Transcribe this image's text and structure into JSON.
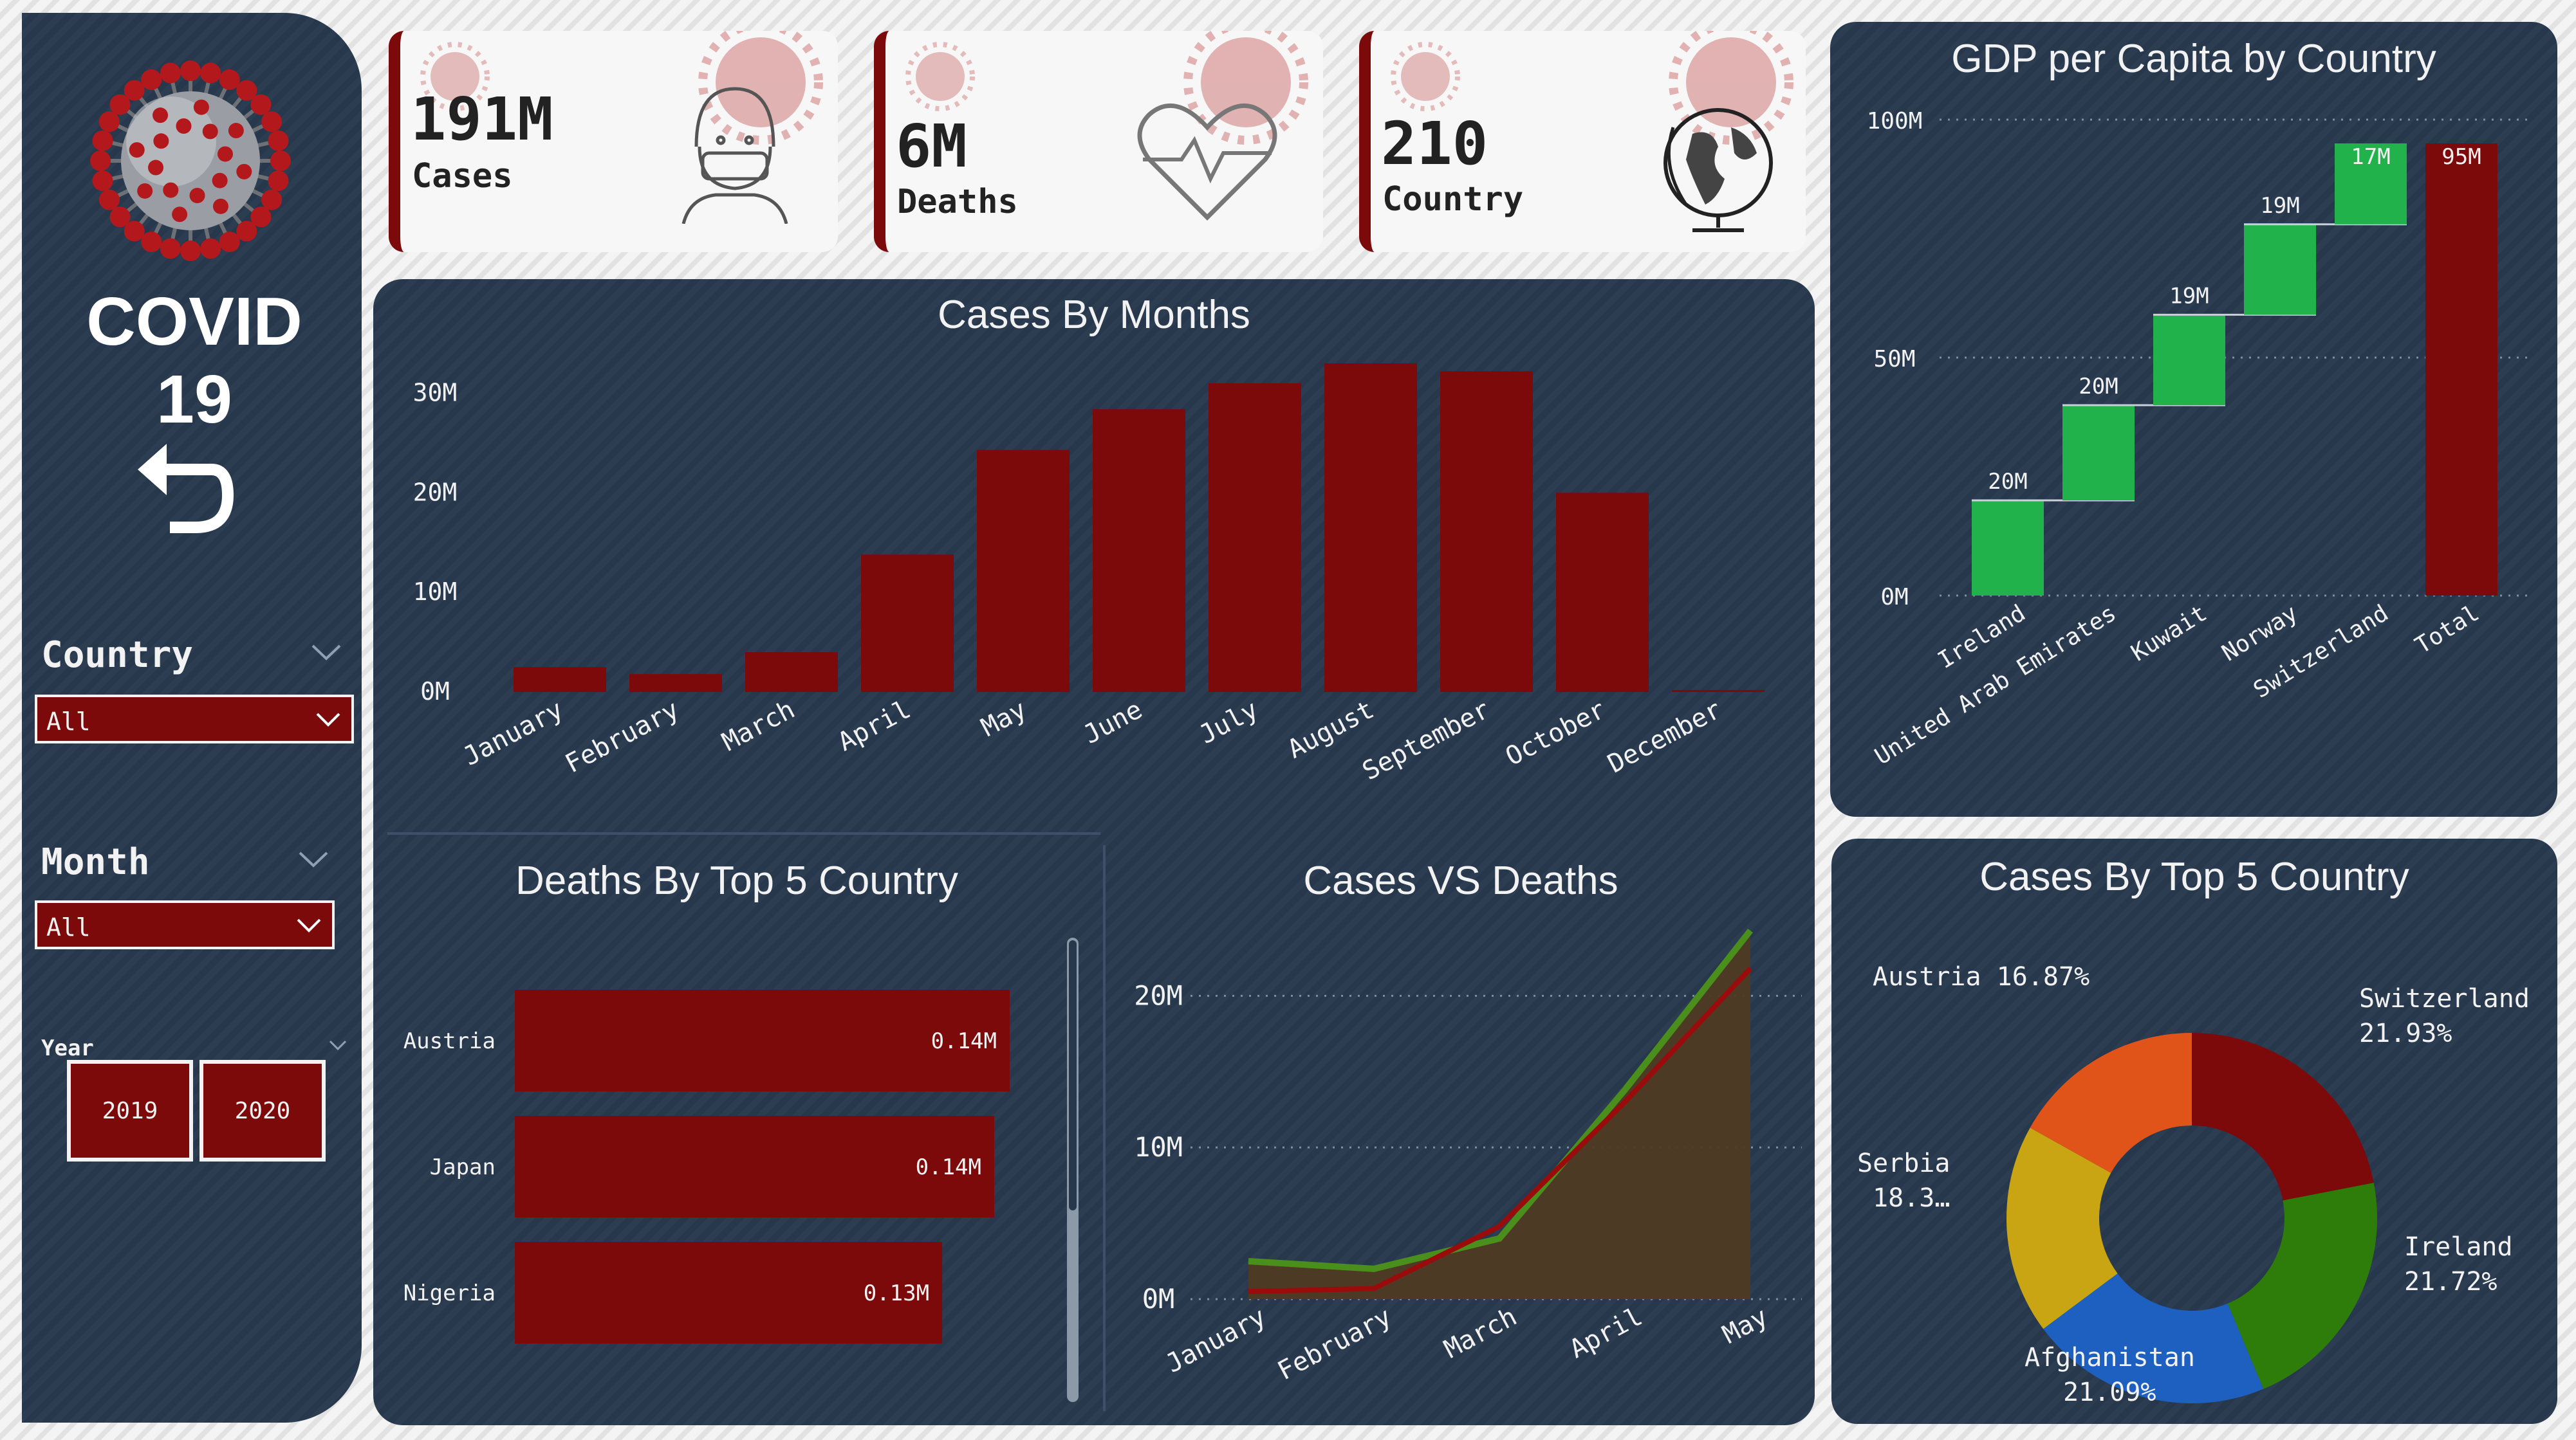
{
  "app_title": "COVID 19",
  "cards": [
    {
      "value": "191M",
      "label": "Cases",
      "icon": "masked-face-icon"
    },
    {
      "value": "6M",
      "label": "Deaths",
      "icon": "heartbeat-icon"
    },
    {
      "value": "210",
      "label": "Country",
      "icon": "globe-icon"
    }
  ],
  "slicers": {
    "country": {
      "label": "Country",
      "selected": "All"
    },
    "month": {
      "label": "Month",
      "selected": "All"
    },
    "year": {
      "label": "Year",
      "options": [
        "2019",
        "2020"
      ]
    }
  },
  "colors": {
    "panel": "#27384d",
    "bar": "#7c0a0a",
    "gain": "#22b24c",
    "accent_line": "#4a8f1c"
  },
  "chart_data": [
    {
      "id": "cases_by_months",
      "type": "bar",
      "title": "Cases By Months",
      "categories": [
        "January",
        "February",
        "March",
        "April",
        "May",
        "June",
        "July",
        "August",
        "September",
        "October",
        "December"
      ],
      "values": [
        2.5,
        1.8,
        4.0,
        13.8,
        24.3,
        28.4,
        31.0,
        33.0,
        32.2,
        20.0,
        0.2
      ],
      "y_ticks": [
        "0M",
        "10M",
        "20M",
        "30M"
      ],
      "ylim": [
        0,
        35
      ],
      "unit": "M"
    },
    {
      "id": "deaths_by_top5_country",
      "type": "bar",
      "orientation": "horizontal",
      "title": "Deaths By Top 5 Country",
      "categories": [
        "Austria",
        "Japan",
        "Nigeria"
      ],
      "values": [
        0.14,
        0.14,
        0.13
      ],
      "data_labels": [
        "0.14M",
        "0.14M",
        "0.13M"
      ]
    },
    {
      "id": "cases_vs_deaths",
      "type": "area",
      "title": "Cases VS Deaths",
      "categories": [
        "January",
        "February",
        "March",
        "April",
        "May"
      ],
      "y_ticks": [
        "0M",
        "10M",
        "20M"
      ],
      "ylim": [
        0,
        24
      ],
      "series": [
        {
          "values": [
            2.5,
            2.0,
            4.0,
            13.8,
            24.3
          ]
        },
        {
          "values": [
            0.5,
            0.7,
            4.8,
            13.0,
            21.8
          ]
        }
      ]
    },
    {
      "id": "gdp_per_capita_by_country",
      "type": "bar",
      "subtype": "waterfall",
      "title": "GDP per Capita by Country",
      "categories": [
        "Ireland",
        "United Arab Emirates",
        "Kuwait",
        "Norway",
        "Switzerland",
        "Total"
      ],
      "values": [
        20,
        20,
        19,
        19,
        17,
        95
      ],
      "data_labels": [
        "20M",
        "20M",
        "19M",
        "19M",
        "17M",
        "95M"
      ],
      "y_ticks": [
        "0M",
        "50M",
        "100M"
      ],
      "ylim": [
        0,
        100
      ]
    },
    {
      "id": "cases_by_top5_country",
      "type": "pie",
      "subtype": "donut",
      "title": "Cases By Top 5 Country",
      "slices": [
        {
          "label": "Switzerland",
          "pct_label": "21.93%",
          "value": 21.93,
          "color": "#7c0a0a"
        },
        {
          "label": "Ireland",
          "pct_label": "21.72%",
          "value": 21.72,
          "color": "#2e7d0b"
        },
        {
          "label": "Afghanistan",
          "pct_label": "21.09%",
          "value": 21.09,
          "color": "#1d60c0"
        },
        {
          "label": "Serbia",
          "pct_label": "18.3…",
          "value": 18.3,
          "color": "#c9a514"
        },
        {
          "label": "Austria",
          "pct_label": "16.87%",
          "value": 16.87,
          "color": "#e0541a"
        }
      ]
    }
  ]
}
